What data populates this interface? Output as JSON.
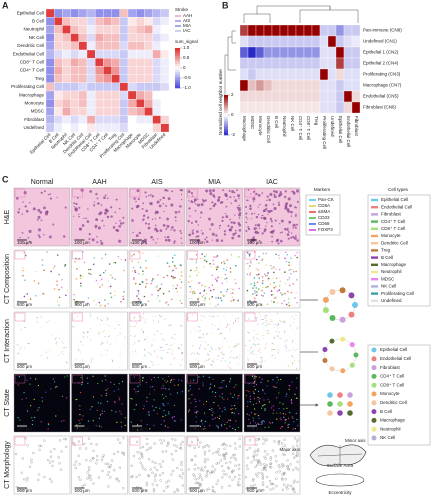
{
  "panel_a": {
    "label": "A",
    "cells": [
      "Epithelial Cell",
      "B Cell",
      "Neutrophil",
      "NK Cell",
      "Dendritic Cell",
      "Endothelial Cell",
      "CD8⁺ T Cell",
      "CD4⁺ T Cell",
      "Treg",
      "Proliferating Cell",
      "Macrophage",
      "Monocyte",
      "MDSC",
      "Fibroblast",
      "Undefined"
    ],
    "matrix": [
      [
        0.9,
        -0.6,
        -0.5,
        -0.6,
        -0.5,
        -0.4,
        -0.6,
        -0.6,
        -0.6,
        0.3,
        -0.5,
        -0.6,
        -0.5,
        -0.4,
        -0.3
      ],
      [
        -0.6,
        0.9,
        0.3,
        0.2,
        0.2,
        -0.2,
        0.3,
        0.4,
        0.3,
        -0.3,
        0.1,
        0.2,
        0.1,
        -0.2,
        -0.1
      ],
      [
        -0.5,
        0.3,
        0.9,
        0.3,
        0.2,
        -0.1,
        0.2,
        0.2,
        0.2,
        -0.3,
        0.2,
        0.3,
        0.4,
        -0.1,
        0
      ],
      [
        -0.6,
        0.2,
        0.3,
        0.9,
        0.3,
        -0.2,
        0.4,
        0.3,
        0.3,
        -0.3,
        0.2,
        0.2,
        0.2,
        -0.2,
        -0.1
      ],
      [
        -0.5,
        0.2,
        0.2,
        0.3,
        0.9,
        -0.1,
        0.3,
        0.3,
        0.3,
        -0.2,
        0.3,
        0.3,
        0.2,
        -0.1,
        0
      ],
      [
        -0.4,
        -0.2,
        -0.1,
        -0.2,
        -0.1,
        0.9,
        -0.2,
        -0.2,
        -0.2,
        -0.3,
        -0.1,
        -0.1,
        -0.1,
        0.4,
        0.1
      ],
      [
        -0.6,
        0.3,
        0.2,
        0.4,
        0.3,
        -0.2,
        0.9,
        0.5,
        0.4,
        -0.3,
        0.2,
        0.2,
        0.2,
        -0.2,
        -0.1
      ],
      [
        -0.6,
        0.4,
        0.2,
        0.3,
        0.3,
        -0.2,
        0.5,
        0.9,
        0.5,
        -0.3,
        0.2,
        0.2,
        0.2,
        -0.2,
        -0.1
      ],
      [
        -0.6,
        0.3,
        0.2,
        0.3,
        0.3,
        -0.2,
        0.4,
        0.5,
        0.9,
        -0.3,
        0.2,
        0.2,
        0.2,
        -0.2,
        -0.1
      ],
      [
        0.3,
        -0.3,
        -0.3,
        -0.3,
        -0.2,
        -0.3,
        -0.3,
        -0.3,
        -0.3,
        0.9,
        -0.2,
        -0.3,
        -0.3,
        -0.3,
        -0.2
      ],
      [
        -0.5,
        0.1,
        0.2,
        0.2,
        0.3,
        -0.1,
        0.2,
        0.2,
        0.2,
        -0.2,
        0.9,
        0.4,
        0.3,
        0,
        0
      ],
      [
        -0.6,
        0.2,
        0.3,
        0.2,
        0.3,
        -0.1,
        0.2,
        0.2,
        0.2,
        -0.3,
        0.4,
        0.9,
        0.4,
        -0.1,
        0
      ],
      [
        -0.5,
        0.1,
        0.4,
        0.2,
        0.2,
        -0.1,
        0.2,
        0.2,
        0.2,
        -0.3,
        0.3,
        0.4,
        0.9,
        -0.1,
        0
      ],
      [
        -0.4,
        -0.2,
        -0.1,
        -0.2,
        -0.1,
        0.4,
        -0.2,
        -0.2,
        -0.2,
        -0.3,
        0,
        -0.1,
        -0.1,
        0.9,
        0.2
      ],
      [
        -0.3,
        -0.1,
        0,
        -0.1,
        0,
        0.1,
        -0.1,
        -0.1,
        -0.1,
        -0.2,
        0,
        0,
        0,
        0.2,
        0.9
      ]
    ],
    "stroke_title": "Stroke",
    "strokes": [
      {
        "name": "AAH",
        "color": "#e7a2c8"
      },
      {
        "name": "AIS",
        "color": "#a58fd6"
      },
      {
        "name": "MIA",
        "color": "#7f8fd8"
      },
      {
        "name": "IAC",
        "color": "#c0c0e0"
      }
    ],
    "colorbar_title": "sum_signal",
    "clim": [
      -1,
      1
    ],
    "ticks": [
      {
        "value": 1,
        "label": "1.0"
      },
      {
        "value": 0.5,
        "label": "0.5"
      },
      0,
      {
        "value": -0.5,
        "label": "-0.5"
      },
      {
        "value": -1,
        "label": "-1.0"
      }
    ]
  },
  "panel_b": {
    "label": "B",
    "rows": [
      "Pan-immune (CN8)",
      "Undefined (CN1)",
      "Epithelial 1 (CN2)",
      "Epithelial 2 (CN4)",
      "Proliferating (CN3)",
      "Macrophage (CN7)",
      "Endothelial (CN5)",
      "Fibroblast (CN6)"
    ],
    "columns": [
      "Macrophage",
      "MDSC",
      "Monocyte",
      "Dendritic Cell",
      "B Cell",
      "Neutrophil",
      "NK Cell",
      "CD4⁺ T Cell",
      "CD8⁺ T Cell",
      "Treg",
      "Proliferating Cell",
      "Undefined",
      "Epithelial Cell",
      "Endothelial Cell",
      "Fibroblast"
    ],
    "matrix": [
      [
        1.5,
        2,
        2,
        2,
        2,
        2,
        2,
        2,
        2,
        2,
        -0.5,
        -0.5,
        -1,
        -0.5,
        -0.5
      ],
      [
        -0.3,
        -0.5,
        -0.5,
        -0.5,
        -0.5,
        -0.5,
        -0.5,
        -0.5,
        -0.5,
        -0.5,
        -0.3,
        2,
        -0.5,
        -0.3,
        -0.2
      ],
      [
        -1.5,
        -2,
        -1.5,
        -1,
        -1,
        -1,
        -1,
        -1,
        -1,
        -1,
        -0.3,
        -0.3,
        2,
        -0.5,
        -0.5
      ],
      [
        -0.5,
        -0.5,
        -0.5,
        -0.5,
        -0.5,
        -0.5,
        -0.5,
        -0.5,
        -0.5,
        -0.5,
        -0.3,
        -0.3,
        1.5,
        -0.5,
        -0.5
      ],
      [
        -0.3,
        -0.5,
        -0.3,
        -0.3,
        -0.3,
        -0.3,
        -0.3,
        -0.3,
        -0.3,
        -0.3,
        2,
        -0.3,
        0.3,
        -0.3,
        -0.3
      ],
      [
        2,
        0.5,
        0.8,
        0.5,
        0.3,
        0.3,
        0.3,
        0.3,
        0.3,
        0.3,
        -0.3,
        -0.3,
        -0.5,
        -0.3,
        -0.3
      ],
      [
        0.3,
        0.3,
        0.3,
        0.3,
        0.3,
        0.3,
        0.3,
        0.3,
        0.3,
        0.3,
        -0.3,
        -0.3,
        -0.5,
        2,
        0.3
      ],
      [
        0.2,
        0.2,
        0.2,
        0.2,
        0.2,
        0.2,
        0.2,
        0.2,
        0.2,
        0.2,
        -0.3,
        -0.3,
        -0.5,
        0.3,
        2
      ]
    ],
    "colorbar_title": "Normalized cell neighbor number",
    "clim": [
      -2,
      2
    ],
    "ticks": [
      -2,
      0,
      2
    ]
  },
  "panel_c": {
    "label": "C",
    "columns": [
      "Normal",
      "AAH",
      "AIS",
      "MIA",
      "IAC"
    ],
    "rows": [
      {
        "name": "H&E",
        "scale": "100 μm"
      },
      {
        "name": "CT Composition",
        "scale": "500 μm"
      },
      {
        "name": "CT Interaction",
        "scale": "500 μm"
      },
      {
        "name": "CT State",
        "scale": "500 μm"
      },
      {
        "name": "CT Morphology",
        "scale": "500 μm"
      }
    ],
    "markers_title": "Markers",
    "markers": [
      {
        "name": "Pan-CK",
        "color": "#3ec7e6"
      },
      {
        "name": "CD8A",
        "color": "#d6d63a"
      },
      {
        "name": "aSMA",
        "color": "#e04040"
      },
      {
        "name": "CD33",
        "color": "#40c040"
      },
      {
        "name": "CD68",
        "color": "#4060e0"
      },
      {
        "name": "FOXP3",
        "color": "#d040d0"
      }
    ],
    "cell_types_title": "Cell types",
    "cell_types": [
      {
        "name": "Epithelial Cell",
        "color": "#6ec6e8"
      },
      {
        "name": "Endothelial Cell",
        "color": "#f08080"
      },
      {
        "name": "Fibroblast",
        "color": "#c9a0dc"
      },
      {
        "name": "CD4⁺ T Cell",
        "color": "#5cb85c"
      },
      {
        "name": "CD8⁺ T Cell",
        "color": "#a6e07a"
      },
      {
        "name": "Monocyte",
        "color": "#f4a460"
      },
      {
        "name": "Dendritic Cell",
        "color": "#f7c6a0"
      },
      {
        "name": "Treg",
        "color": "#c07a3a"
      },
      {
        "name": "B Cell",
        "color": "#8e44ad"
      },
      {
        "name": "Macrophage",
        "color": "#556b2f"
      },
      {
        "name": "Neutrophil",
        "color": "#f0e68c"
      },
      {
        "name": "MDSC",
        "color": "#ee82ee"
      },
      {
        "name": "NK Cell",
        "color": "#b0b0d8"
      },
      {
        "name": "Proliferating Cell",
        "color": "#40a0a0"
      },
      {
        "name": "Undefined",
        "color": "#e0e0e0"
      }
    ],
    "state_types": [
      {
        "name": "Epithelial Cell",
        "color": "#6ec6e8"
      },
      {
        "name": "Endothelial Cell",
        "color": "#f08080"
      },
      {
        "name": "Fibroblast",
        "color": "#c9a0dc"
      },
      {
        "name": "CD4⁺ T Cell",
        "color": "#5cb85c"
      },
      {
        "name": "CD8⁺ T Cell",
        "color": "#a6e07a"
      },
      {
        "name": "Monocyte",
        "color": "#f4a460"
      },
      {
        "name": "Dendritic Cell",
        "color": "#f7c6a0"
      },
      {
        "name": "B Cell",
        "color": "#8e44ad"
      },
      {
        "name": "Macrophage",
        "color": "#556b2f"
      },
      {
        "name": "Neutrophil",
        "color": "#f0e68c"
      },
      {
        "name": "NK Cell",
        "color": "#b0b0d8"
      }
    ],
    "morphology": {
      "minor": "Minor axis",
      "major": "Major axis",
      "area": "Surface Area",
      "eccentricity": "Eccentricity"
    }
  }
}
